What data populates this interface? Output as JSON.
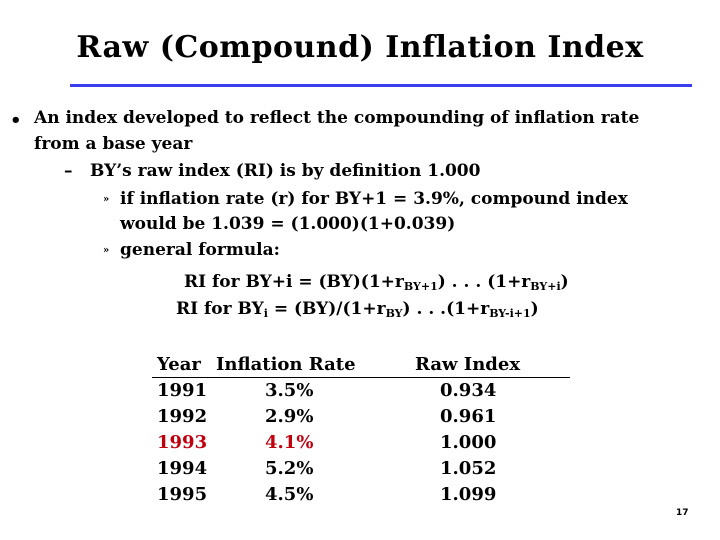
{
  "slide": {
    "title": "Raw (Compound) Inflation Index",
    "bullet_main_1": "An index developed to reflect the compounding of inflation rate",
    "bullet_main_2": "from a base year",
    "dash": "–",
    "sub_1": "BY’s raw index (RI) is by definition 1.000",
    "sub_2a": "if inflation rate (r) for BY+1 = 3.9%, compound index",
    "sub_2b": "would be 1.039 =  (1.000)(1+0.039)",
    "sub_3": "general formula:",
    "formula_1": {
      "a": "RI for BY+i = (BY)(1+r",
      "s1": "BY+1",
      "b": ") . . . (1+r",
      "s2": "BY+i",
      "c": ")"
    },
    "formula_2": {
      "a": "RI for BY",
      "s0": "i",
      "b": " = (BY)/(1+r",
      "s1": "BY",
      "c": ") . . .(1+r",
      "s2": "BY-i+1",
      "d": ")"
    },
    "page_number": "17"
  },
  "table": {
    "headers": [
      "Year",
      "Inflation Rate",
      "Raw Index"
    ],
    "rows": [
      [
        "1991",
        "3.5%",
        "0.934"
      ],
      [
        "1992",
        "2.9%",
        "0.961"
      ],
      [
        "1993",
        "4.1%",
        "1.000"
      ],
      [
        "1994",
        "5.2%",
        "1.052"
      ],
      [
        "1995",
        "4.5%",
        "1.099"
      ]
    ],
    "highlight_color": "#c1000e"
  }
}
